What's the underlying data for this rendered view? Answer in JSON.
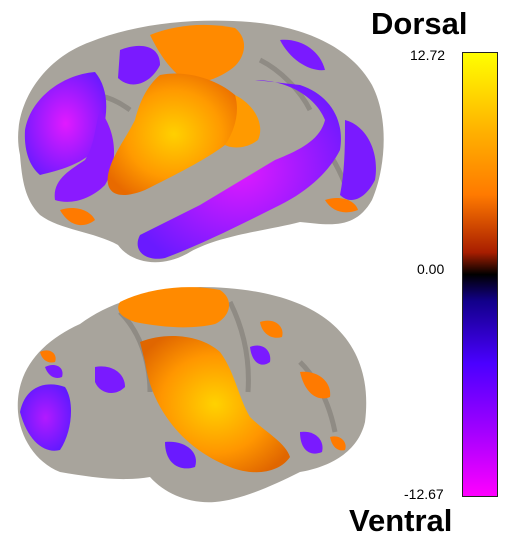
{
  "labels": {
    "top": "Dorsal",
    "bottom": "Ventral"
  },
  "colorbar": {
    "max_label": "12.72",
    "zero_label": "0.00",
    "min_label": "-12.67",
    "max_value": 12.72,
    "min_value": -12.67,
    "colors": {
      "max": "#ffff00",
      "upper_mid": "#ff8a00",
      "near_zero_pos": "#5a0f00",
      "zero": "#000000",
      "near_zero_neg": "#12008a",
      "lower_mid": "#6a00ff",
      "min": "#ff00ff"
    }
  },
  "images": {
    "dorsal_brain": "brain-surface-dorsal-view",
    "ventral_brain": "brain-surface-ventral-view"
  },
  "colors": {
    "cortex": "#a8a49c",
    "sulcus": "#8f8b84",
    "positive": "#ff8c00",
    "positive_peak": "#ffc800",
    "negative": "#7a1aff",
    "negative_peak": "#c81aff"
  }
}
